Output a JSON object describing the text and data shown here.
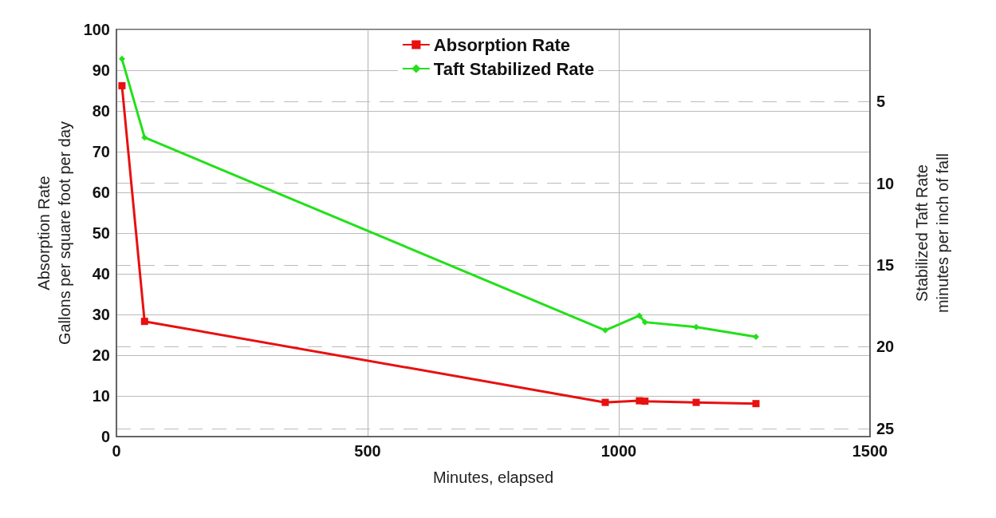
{
  "chart_data": {
    "type": "line",
    "xlabel": "Minutes, elapsed",
    "ylabel": "Absorption Rate\nGallons per square foot per day",
    "y2label": "Stabilized Taft Rate\nminutes per inch of fall",
    "xlim": [
      0,
      1500
    ],
    "xticks": [
      0,
      500,
      1000,
      1500
    ],
    "ylim": [
      0,
      100
    ],
    "yticks": [
      0,
      10,
      20,
      30,
      40,
      50,
      60,
      70,
      80,
      90,
      100
    ],
    "y2lim": [
      25.5,
      0.6
    ],
    "y2ticks": [
      5,
      10,
      15,
      20,
      25
    ],
    "grid": true,
    "legend": "top",
    "line_style": "solid",
    "series": [
      {
        "name": "Absorption Rate",
        "color": "#e81010",
        "marker": "square",
        "x": [
          11,
          56,
          973,
          1041,
          1052,
          1154,
          1273
        ],
        "values": [
          86.2,
          28.3,
          8.4,
          8.8,
          8.7,
          8.4,
          8.1
        ]
      },
      {
        "name": "Taft Stabilized Rate",
        "color": "#22e01a",
        "marker": "diamond",
        "axis": "y2",
        "x": [
          11,
          56,
          973,
          1041,
          1052,
          1154,
          1273
        ],
        "values": [
          2.4,
          7.2,
          19.0,
          18.1,
          18.5,
          18.8,
          19.4
        ]
      }
    ]
  }
}
